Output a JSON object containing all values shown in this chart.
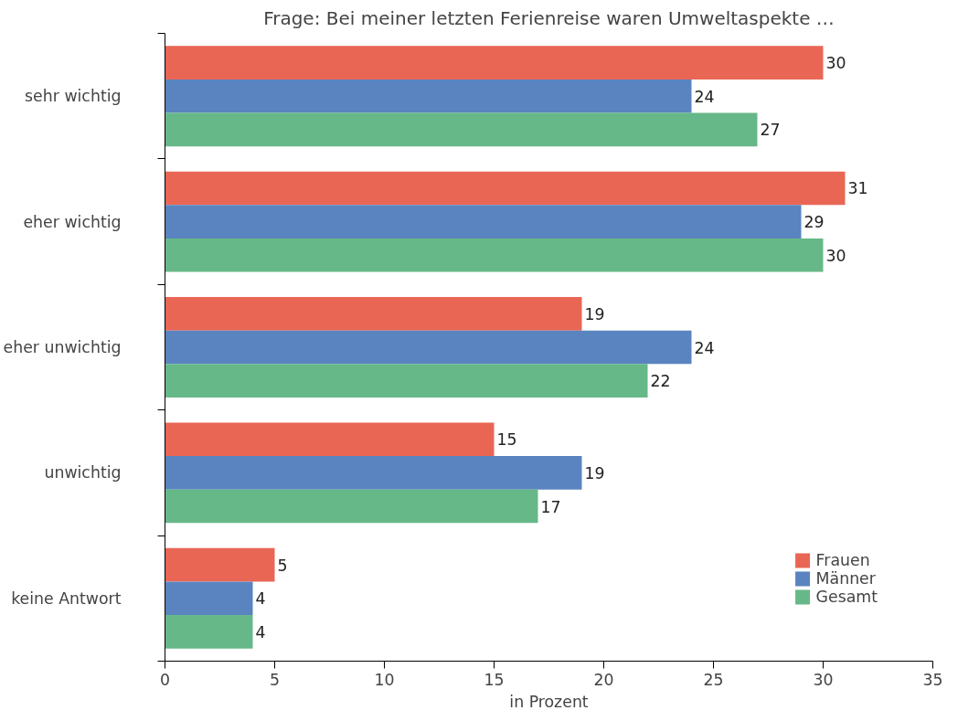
{
  "chart_data": {
    "type": "bar",
    "orientation": "horizontal",
    "title": "Frage: Bei meiner letzten Ferienreise waren Umweltaspekte …",
    "xlabel": "in Prozent",
    "categories": [
      "sehr wichtig",
      "eher wichtig",
      "eher unwichtig",
      "unwichtig",
      "keine Antwort"
    ],
    "series": [
      {
        "name": "Frauen",
        "color": "#e96655",
        "values": [
          30,
          31,
          19,
          15,
          5
        ]
      },
      {
        "name": "Männer",
        "color": "#5a84bf",
        "values": [
          24,
          29,
          24,
          19,
          4
        ]
      },
      {
        "name": "Gesamt",
        "color": "#66b888",
        "values": [
          27,
          30,
          22,
          17,
          4
        ]
      }
    ],
    "xlim": [
      0,
      35
    ],
    "xticks": [
      0,
      5,
      10,
      15,
      20,
      25,
      30,
      35
    ],
    "grid": false,
    "legend": "bottom right",
    "data_labels": true
  }
}
